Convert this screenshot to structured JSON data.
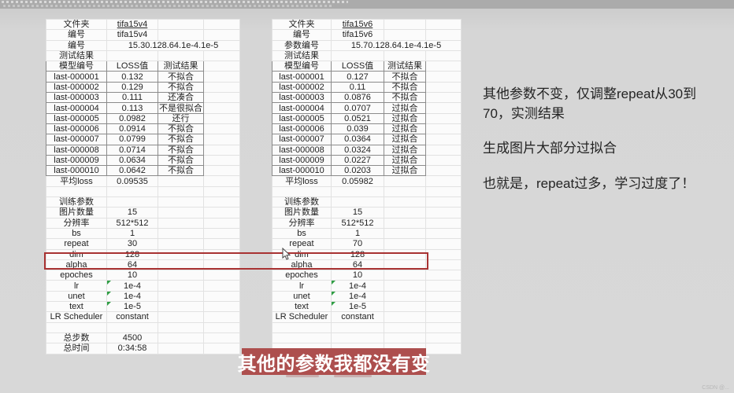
{
  "colors": {
    "accent_red": "#a83232",
    "subtitle_bg": "#ad4f4e",
    "highlight_green": "#c6e0b4",
    "grid_light": "#e2e2e2",
    "grid_dark": "#8b8b8b"
  },
  "tables": {
    "left": {
      "info_rows": [
        {
          "label": "文件夹",
          "value": "tifa15v4",
          "u": true
        },
        {
          "label": "编号",
          "value": "tifa15v4",
          "align": "left"
        },
        {
          "label": "编号",
          "value": "15.30.128.64.1e-4.1e-5",
          "span": true
        },
        {
          "label": "测试结果",
          "value": ""
        }
      ],
      "model_header": [
        "模型编号",
        "LOSS值",
        "测试结果"
      ],
      "model_rows": [
        {
          "id": "last-000001",
          "loss": "0.132",
          "result": "不拟合",
          "hl": false
        },
        {
          "id": "last-000002",
          "loss": "0.129",
          "result": "不拟合",
          "hl": false
        },
        {
          "id": "last-000003",
          "loss": "0.111",
          "result": "还凑合",
          "hl": true
        },
        {
          "id": "last-000004",
          "loss": "0.113",
          "result": "不是很拟合",
          "hl": false
        },
        {
          "id": "last-000005",
          "loss": "0.0982",
          "result": "还行",
          "hl": true
        },
        {
          "id": "last-000006",
          "loss": "0.0914",
          "result": "不拟合",
          "hl": false
        },
        {
          "id": "last-000007",
          "loss": "0.0799",
          "result": "不拟合",
          "hl": false
        },
        {
          "id": "last-000008",
          "loss": "0.0714",
          "result": "不拟合",
          "hl": false
        },
        {
          "id": "last-000009",
          "loss": "0.0634",
          "result": "不拟合",
          "hl": false
        },
        {
          "id": "last-000010",
          "loss": "0.0642",
          "result": "不拟合",
          "hl": false
        }
      ],
      "avg_label": "平均loss",
      "avg_value": "0.09535",
      "params_title": "训练参数",
      "param_rows": [
        {
          "label": "图片数量",
          "value": "15"
        },
        {
          "label": "分辨率",
          "value": "512*512"
        },
        {
          "label": "bs",
          "value": "1"
        },
        {
          "label": "repeat",
          "value": "30"
        },
        {
          "label": "dim",
          "value": "128"
        },
        {
          "label": "alpha",
          "value": "64"
        },
        {
          "label": "epoches",
          "value": "10"
        },
        {
          "label": "lr",
          "value": "1e-4",
          "tri": true
        },
        {
          "label": "unet",
          "value": "1e-4",
          "tri": true
        },
        {
          "label": "text",
          "value": "1e-5",
          "tri": true
        },
        {
          "label": "LR Scheduler",
          "value": "constant"
        }
      ],
      "total_rows": [
        {
          "label": "总步数",
          "value": "4500"
        },
        {
          "label": "总时间",
          "value": "0:34:58"
        }
      ]
    },
    "right": {
      "info_rows": [
        {
          "label": "文件夹",
          "value": "tifa15v6",
          "u": true
        },
        {
          "label": "编号",
          "value": "tifa15v6",
          "align": "left"
        },
        {
          "label": "参数编号",
          "value": "15.70.128.64.1e-4.1e-5",
          "span": true
        },
        {
          "label": "测试结果",
          "value": ""
        }
      ],
      "model_header": [
        "模型编号",
        "LOSS值",
        "测试结果"
      ],
      "model_rows": [
        {
          "id": "last-000001",
          "loss": "0.127",
          "result": "不拟合",
          "hl": false
        },
        {
          "id": "last-000002",
          "loss": "0.11",
          "result": "不拟合",
          "hl": false
        },
        {
          "id": "last-000003",
          "loss": "0.0876",
          "result": "不拟合",
          "hl": false
        },
        {
          "id": "last-000004",
          "loss": "0.0707",
          "result": "过拟合",
          "hl": false
        },
        {
          "id": "last-000005",
          "loss": "0.0521",
          "result": "过拟合",
          "hl": false
        },
        {
          "id": "last-000006",
          "loss": "0.039",
          "result": "过拟合",
          "hl": false
        },
        {
          "id": "last-000007",
          "loss": "0.0364",
          "result": "过拟合",
          "hl": false
        },
        {
          "id": "last-000008",
          "loss": "0.0324",
          "result": "过拟合",
          "hl": false
        },
        {
          "id": "last-000009",
          "loss": "0.0227",
          "result": "过拟合",
          "hl": false
        },
        {
          "id": "last-000010",
          "loss": "0.0203",
          "result": "过拟合",
          "hl": false
        }
      ],
      "avg_label": "平均loss",
      "avg_value": "0.05982",
      "params_title": "训练参数",
      "param_rows": [
        {
          "label": "图片数量",
          "value": "15"
        },
        {
          "label": "分辨率",
          "value": "512*512"
        },
        {
          "label": "bs",
          "value": "1"
        },
        {
          "label": "repeat",
          "value": "70"
        },
        {
          "label": "dim",
          "value": "128"
        },
        {
          "label": "alpha",
          "value": "64"
        },
        {
          "label": "epoches",
          "value": "10"
        },
        {
          "label": "lr",
          "value": "1e-4",
          "tri": true
        },
        {
          "label": "unet",
          "value": "1e-4",
          "tri": true
        },
        {
          "label": "text",
          "value": "1e-5",
          "tri": true
        },
        {
          "label": "LR Scheduler",
          "value": "constant"
        }
      ],
      "total_rows": [
        {
          "label": "",
          "value": ""
        },
        {
          "label": "",
          "value": ""
        }
      ]
    }
  },
  "annotation": {
    "p1": "其他参数不变，仅调整repeat从30到70，实测结果",
    "p2": "生成图片大部分过拟合",
    "p3": "也就是，repeat过多，学习过度了！"
  },
  "subtitle": {
    "text": "其他的参数我都没有变"
  },
  "watermark": "CSDN @..."
}
